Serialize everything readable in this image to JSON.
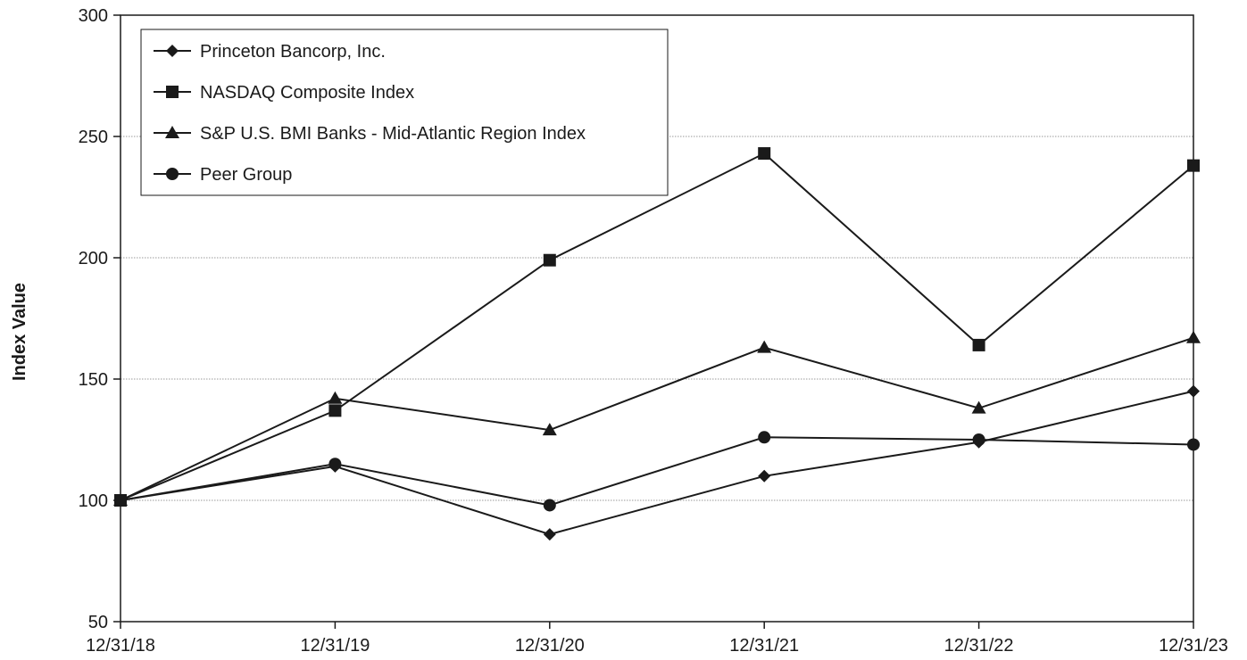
{
  "chart_data": {
    "type": "line",
    "title": "",
    "xlabel": "",
    "ylabel": "Index Value",
    "categories": [
      "12/31/18",
      "12/31/19",
      "12/31/20",
      "12/31/21",
      "12/31/22",
      "12/31/23"
    ],
    "ylim": [
      50,
      300
    ],
    "yticks": [
      "50",
      "100",
      "150",
      "200",
      "250",
      "300"
    ],
    "grid": "horizontal dotted",
    "legend_position": "top-left",
    "series": [
      {
        "name": "Princeton Bancorp, Inc.",
        "marker": "diamond",
        "values": [
          100,
          114,
          86,
          110,
          124,
          145
        ]
      },
      {
        "name": "NASDAQ Composite Index",
        "marker": "square",
        "values": [
          100,
          137,
          199,
          243,
          164,
          238
        ]
      },
      {
        "name": "S&P U.S. BMI Banks - Mid-Atlantic Region Index",
        "marker": "triangle",
        "values": [
          100,
          142,
          129,
          163,
          138,
          167
        ]
      },
      {
        "name": "Peer Group",
        "marker": "circle",
        "values": [
          100,
          115,
          98,
          126,
          125,
          123
        ]
      }
    ]
  }
}
